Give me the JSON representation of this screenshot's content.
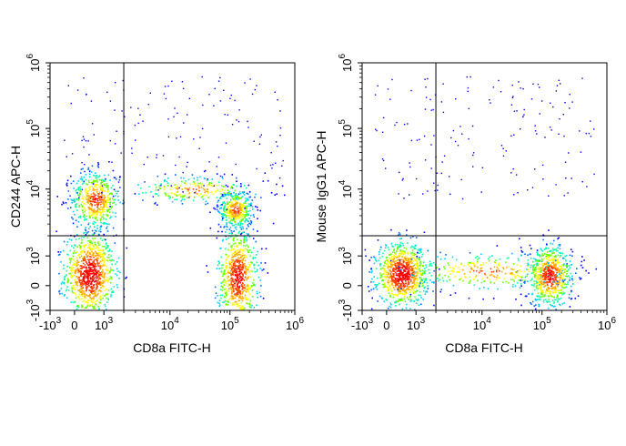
{
  "chart_data": [
    {
      "type": "scatter",
      "title": "",
      "xlabel": "CD8a FITC-H",
      "ylabel": "CD244 APC-H",
      "x_scale": "biexponential",
      "y_scale": "biexponential",
      "xlim": [
        -1000,
        1000000
      ],
      "ylim": [
        -1000,
        1000000
      ],
      "grid": false,
      "x_ticks": [
        {
          "value": -1000,
          "base": "-10",
          "exp": "3"
        },
        {
          "value": 0,
          "base": "0",
          "exp": ""
        },
        {
          "value": 1000,
          "base": "10",
          "exp": "3"
        },
        {
          "value": 10000,
          "base": "10",
          "exp": "4"
        },
        {
          "value": 100000,
          "base": "10",
          "exp": "5"
        },
        {
          "value": 1000000,
          "base": "10",
          "exp": "6"
        }
      ],
      "y_ticks": [
        {
          "value": -1000,
          "base": "-10",
          "exp": "3"
        },
        {
          "value": 0,
          "base": "0",
          "exp": ""
        },
        {
          "value": 1000,
          "base": "10",
          "exp": "3"
        },
        {
          "value": 10000,
          "base": "10",
          "exp": "4"
        },
        {
          "value": 100000,
          "base": "10",
          "exp": "5"
        },
        {
          "value": 1000000,
          "base": "10",
          "exp": "6"
        }
      ],
      "quadrant_gate": {
        "x": 2000,
        "y": 2000
      },
      "populations": [
        {
          "x": 500,
          "y": 400,
          "sx": 0.05,
          "sy": 0.08,
          "weight": 1.0,
          "peak_color": "#ff0000"
        },
        {
          "x": 700,
          "y": 7000,
          "sx": 0.05,
          "sy": 0.06,
          "weight": 0.55,
          "peak_color": "#ffcc00"
        },
        {
          "x": 120000,
          "y": 5000,
          "sx": 0.035,
          "sy": 0.04,
          "weight": 0.45,
          "peak_color": "#ffee00"
        },
        {
          "x": 130000,
          "y": 300,
          "sx": 0.04,
          "sy": 0.1,
          "weight": 0.8,
          "peak_color": "#ff3300"
        },
        {
          "x": 25000,
          "y": 10000,
          "sx": 0.15,
          "sy": 0.03,
          "weight": 0.25,
          "peak_color": "#00ffcc"
        }
      ]
    },
    {
      "type": "scatter",
      "title": "",
      "xlabel": "CD8a FITC-H",
      "ylabel": "Mouse IgG1 APC-H",
      "x_scale": "biexponential",
      "y_scale": "biexponential",
      "xlim": [
        -1000,
        1000000
      ],
      "ylim": [
        -1000,
        1000000
      ],
      "grid": false,
      "x_ticks": [
        {
          "value": -1000,
          "base": "-10",
          "exp": "3"
        },
        {
          "value": 0,
          "base": "0",
          "exp": ""
        },
        {
          "value": 1000,
          "base": "10",
          "exp": "3"
        },
        {
          "value": 10000,
          "base": "10",
          "exp": "4"
        },
        {
          "value": 100000,
          "base": "10",
          "exp": "5"
        },
        {
          "value": 1000000,
          "base": "10",
          "exp": "6"
        }
      ],
      "y_ticks": [
        {
          "value": -1000,
          "base": "-10",
          "exp": "3"
        },
        {
          "value": 0,
          "base": "0",
          "exp": ""
        },
        {
          "value": 1000,
          "base": "10",
          "exp": "3"
        },
        {
          "value": 10000,
          "base": "10",
          "exp": "4"
        },
        {
          "value": 100000,
          "base": "10",
          "exp": "5"
        },
        {
          "value": 1000000,
          "base": "10",
          "exp": "6"
        }
      ],
      "quadrant_gate": {
        "x": 2000,
        "y": 2000
      },
      "populations": [
        {
          "x": 500,
          "y": 400,
          "sx": 0.05,
          "sy": 0.06,
          "weight": 1.0,
          "peak_color": "#ff0000"
        },
        {
          "x": 130000,
          "y": 350,
          "sx": 0.045,
          "sy": 0.06,
          "weight": 0.75,
          "peak_color": "#ffcc00"
        },
        {
          "x": 12000,
          "y": 500,
          "sx": 0.18,
          "sy": 0.04,
          "weight": 0.35,
          "peak_color": "#00ccff"
        }
      ]
    }
  ]
}
